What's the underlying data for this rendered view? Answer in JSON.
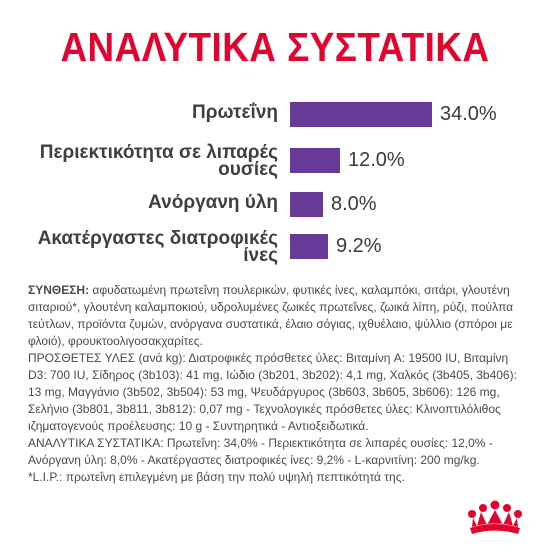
{
  "title": "ΑΝΑΛΥΤΙΚΑ ΣΥΣΤΑΤΙΚΑ",
  "chart_data": {
    "type": "bar",
    "orientation": "horizontal",
    "categories": [
      "Πρωτεΐνη",
      "Περιεκτικότητα σε λιπαρές ουσίες",
      "Ανόργανη ύλη",
      "Ακατέργαστες διατροφικές ίνες"
    ],
    "values": [
      34.0,
      12.0,
      8.0,
      9.2
    ],
    "value_labels": [
      "34.0%",
      "12.0%",
      "8.0%",
      "9.2%"
    ],
    "label_lines": [
      [
        "Πρωτεΐνη"
      ],
      [
        "Περιεκτικότητα σε λιπαρές",
        "ουσίες"
      ],
      [
        "Ανόργανη ύλη"
      ],
      [
        "Ακατέργαστες διατροφικές",
        "ίνες"
      ]
    ],
    "xlim": [
      0,
      34.0
    ],
    "bar_color": "#663a96",
    "grid": false,
    "legend": "none"
  },
  "composition": {
    "label": "ΣΥΝΘΕΣΗ:",
    "text": " αφυδατωμένη πρωτεΐνη πουλερικών, φυτικές ίνες, καλαμπόκι, σιτάρι, γλουτένη σιταριού*, γλουτένη καλαμποκιού, υδρολυμένες ζωικές πρωτεΐνες, ζωικά λίπη, ρύζι, πούλπα τεύτλων, προϊόντα ζυμών, ανόργανα συστατικά, έλαιο σόγιας, ιχθυέλαιο, ψύλλιο (σπόροι με φλοιό), φρουκτοολιγοσακχαρίτες."
  },
  "additives": {
    "text": "ΠΡΟΣΘΕΤΕΣ ΥΛΕΣ (ανά kg): Διατροφικές πρόσθετες ύλες: Βιταμίνη A: 19500 IU, Βιταμίνη D3: 700 IU, Σίδηρος (3b103): 41 mg, Ιώδιο (3b201, 3b202): 4,1 mg, Χαλκός (3b405, 3b406): 13 mg, Μαγγάνιο (3b502, 3b504): 53 mg, Ψευδάργυρος (3b603, 3b605, 3b606): 126 mg, Σελήνιο (3b801, 3b811, 3b812): 0,07 mg - Τεχνολογικές πρόσθετες ύλες: Κλινοπτιλόλιθος ιζηματογενούς προέλευσης: 10 g - Συντηρητικά - Αντιοξειδωτικά."
  },
  "analytical": {
    "text": "ΑΝΑΛΥΤΙΚΑ ΣΥΣΤΑΤΙΚΑ: Πρωτεΐνη: 34,0% - Περιεκτικότητα σε λιπαρές ουσίες: 12,0% - Ανόργανη ύλη: 8,0% - Ακατέργαστες διατροφικές ίνες: 9,2% - L-καρνιτίνη: 200 mg/kg."
  },
  "footnote": {
    "text": "*L.I.P.: πρωτεΐνη επιλεγμένη με βάση την πολύ υψηλή πεπτικότητά της."
  },
  "logo": {
    "icon": "royal-canin-crown-icon",
    "color": "#e4032e"
  }
}
